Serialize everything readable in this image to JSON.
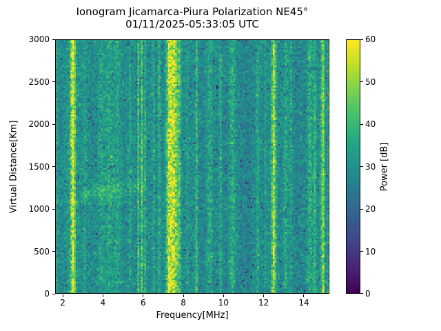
{
  "title": "Ionogram Jicamarca-Piura Polarization NE45°",
  "subtitle": "01/11/2025-05:33:05 UTC",
  "chart_data": {
    "type": "heatmap",
    "title": "Ionogram Jicamarca-Piura Polarization NE45°",
    "subtitle": "01/11/2025-05:33:05 UTC",
    "xlabel": "Frequency[MHz]",
    "ylabel": "Virtual Distance[Km]",
    "colorbar_label": "Power [dB]",
    "xlim": [
      1.62,
      15.27
    ],
    "ylim": [
      0,
      3000
    ],
    "clim": [
      0,
      60
    ],
    "x_ticks": [
      2,
      4,
      6,
      8,
      10,
      12,
      14
    ],
    "y_ticks": [
      0,
      500,
      1000,
      1500,
      2000,
      2500,
      3000
    ],
    "colorbar_ticks": [
      0,
      10,
      20,
      30,
      40,
      50,
      60
    ],
    "colormap": "viridis",
    "colormap_stops": [
      "#440154",
      "#482475",
      "#414487",
      "#355f8d",
      "#2a788e",
      "#21918c",
      "#22a884",
      "#44bf70",
      "#7ad151",
      "#bddf26",
      "#fde725"
    ],
    "grid": {
      "cols": 160,
      "rows": 148
    },
    "noise": {
      "floor_db": 28.5,
      "sigma_db": 3.8,
      "dark_speckle_prob": 0.02,
      "dark_speckle_db": -12,
      "bright_speckle_prob": 0.012,
      "bright_speckle_db": 6
    },
    "rfi_bands": [
      {
        "freq_mhz": 1.68,
        "sigma_mhz": 0.05,
        "db_above_floor": 6
      },
      {
        "freq_mhz": 2.5,
        "sigma_mhz": 0.07,
        "db_above_floor": 26
      },
      {
        "freq_mhz": 2.5,
        "sigma_mhz": 0.22,
        "db_above_floor": 6
      },
      {
        "freq_mhz": 3.1,
        "sigma_mhz": 0.07,
        "db_above_floor": 5
      },
      {
        "freq_mhz": 3.9,
        "sigma_mhz": 0.12,
        "db_above_floor": 4
      },
      {
        "freq_mhz": 4.35,
        "sigma_mhz": 0.25,
        "db_above_floor": 5
      },
      {
        "freq_mhz": 4.75,
        "sigma_mhz": 0.1,
        "db_above_floor": 4
      },
      {
        "freq_mhz": 5.35,
        "sigma_mhz": 0.05,
        "db_above_floor": 6
      },
      {
        "freq_mhz": 5.78,
        "sigma_mhz": 0.035,
        "db_above_floor": 15
      },
      {
        "freq_mhz": 5.95,
        "sigma_mhz": 0.035,
        "db_above_floor": 17
      },
      {
        "freq_mhz": 6.12,
        "sigma_mhz": 0.03,
        "db_above_floor": 12
      },
      {
        "freq_mhz": 6.5,
        "sigma_mhz": 0.04,
        "db_above_floor": 9
      },
      {
        "freq_mhz": 6.8,
        "sigma_mhz": 0.05,
        "db_above_floor": 10
      },
      {
        "freq_mhz": 7.3,
        "sigma_mhz": 0.1,
        "db_above_floor": 24
      },
      {
        "freq_mhz": 7.55,
        "sigma_mhz": 0.12,
        "db_above_floor": 26
      },
      {
        "freq_mhz": 7.8,
        "sigma_mhz": 0.06,
        "db_above_floor": 12
      },
      {
        "freq_mhz": 8.2,
        "sigma_mhz": 0.05,
        "db_above_floor": 6
      },
      {
        "freq_mhz": 8.65,
        "sigma_mhz": 0.05,
        "db_above_floor": 10
      },
      {
        "freq_mhz": 9.3,
        "sigma_mhz": 0.09,
        "db_above_floor": 7
      },
      {
        "freq_mhz": 9.85,
        "sigma_mhz": 0.05,
        "db_above_floor": 8
      },
      {
        "freq_mhz": 10.45,
        "sigma_mhz": 0.1,
        "db_above_floor": 9
      },
      {
        "freq_mhz": 11.7,
        "sigma_mhz": 0.06,
        "db_above_floor": 7
      },
      {
        "freq_mhz": 12.1,
        "sigma_mhz": 0.04,
        "db_above_floor": 5
      },
      {
        "freq_mhz": 12.5,
        "sigma_mhz": 0.08,
        "db_above_floor": 24
      },
      {
        "freq_mhz": 13.1,
        "sigma_mhz": 0.07,
        "db_above_floor": 8
      },
      {
        "freq_mhz": 13.35,
        "sigma_mhz": 0.05,
        "db_above_floor": 6
      },
      {
        "freq_mhz": 14.3,
        "sigma_mhz": 0.09,
        "db_above_floor": 8
      },
      {
        "freq_mhz": 14.55,
        "sigma_mhz": 0.06,
        "db_above_floor": 9
      },
      {
        "freq_mhz": 14.95,
        "sigma_mhz": 0.06,
        "db_above_floor": 22
      },
      {
        "freq_mhz": 15.22,
        "sigma_mhz": 0.04,
        "db_above_floor": 10
      }
    ],
    "quiet_bands": [
      {
        "freq_mhz": 8.95,
        "sigma_mhz": 0.1,
        "db_above_floor": -1.0
      },
      {
        "freq_mhz": 10.05,
        "sigma_mhz": 0.12,
        "db_above_floor": -1.5
      },
      {
        "freq_mhz": 11.1,
        "sigma_mhz": 0.22,
        "db_above_floor": -2.2
      },
      {
        "freq_mhz": 13.75,
        "sigma_mhz": 0.2,
        "db_above_floor": -1.5
      }
    ],
    "echo_trace": {
      "freq_start_mhz": 3.0,
      "freq_end_mhz": 6.0,
      "range_start_km": 1180,
      "range_end_km": 1270,
      "sigma_km": 65,
      "peak_db": 7,
      "shadow_below_db": -1.0,
      "shadow_range_km": [
        960,
        1110
      ]
    },
    "clutter_line": {
      "range_km": 1075,
      "sigma_km": 16,
      "freq_start_mhz": 1.62,
      "freq_end_mhz": 5.3,
      "peak_db": 3.5
    }
  }
}
